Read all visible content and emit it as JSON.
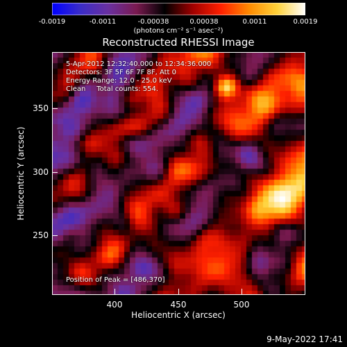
{
  "colorbar": {
    "ticks": [
      "-0.0019",
      "-0.0011",
      "-0.00038",
      "0.00038",
      "0.0011",
      "0.0019"
    ],
    "units": "(photons cm⁻² s⁻¹ asec⁻²)",
    "stops": [
      "#0000ff",
      "#3a2cc8",
      "#6a30a0",
      "#7a1a50",
      "#000000",
      "#a00000",
      "#ff2000",
      "#ff8a00",
      "#ffd23a",
      "#ffffff"
    ]
  },
  "title": "Reconstructed RHESSI Image",
  "annotations": {
    "time": "5-Apr-2012 12:32:40.000 to 12:34:36.000",
    "detectors": "Detectors: 3F 5F 6F 7F 8F, Att 0",
    "energy": "Energy Range: 12.0 - 25.0 keV",
    "clean": "Clean     Total counts: 554.",
    "peak": "Position of Peak = [486,370]"
  },
  "axes": {
    "xlabel": "Heliocentric X (arcsec)",
    "ylabel": "Heliocentric Y (arcsec)",
    "xticks": [
      "400",
      "450",
      "500"
    ],
    "yticks": [
      "350",
      "300",
      "250"
    ],
    "xrange": [
      355,
      542
    ],
    "yrange": [
      197,
      385
    ]
  },
  "footer": {
    "date": "9-May-2022 17:41"
  }
}
